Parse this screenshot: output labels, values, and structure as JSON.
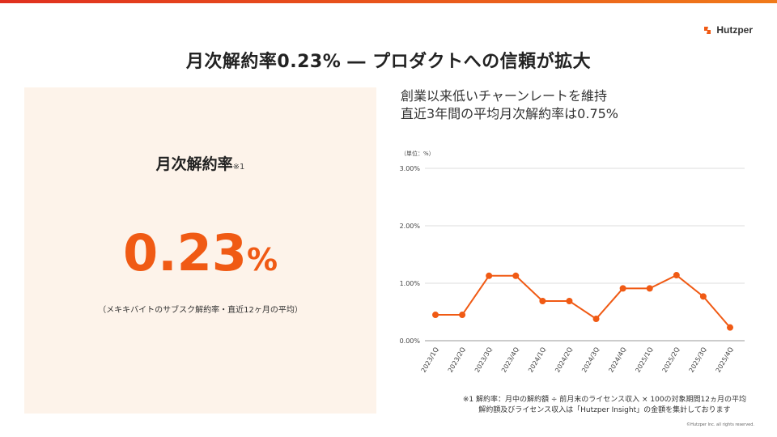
{
  "header": {
    "logo_text": "Hutzper",
    "title": "月次解約率0.23% ― プロダクトへの信頼が拡大"
  },
  "kpi": {
    "label": "月次解約率",
    "note_mark": "※1",
    "value": "0.23",
    "unit": "%",
    "subtitle": "（メキキバイトのサブスク解約率・直近12ヶ月の平均）"
  },
  "right": {
    "line1": "創業以来低いチャーンレートを維持",
    "line2": "直近3年間の平均月次解約率は0.75%"
  },
  "chart_data": {
    "type": "line",
    "unit_label": "（単位：%）",
    "categories": [
      "2023/1Q",
      "2023/2Q",
      "2023/3Q",
      "2023/4Q",
      "2024/1Q",
      "2024/2Q",
      "2024/3Q",
      "2024/4Q",
      "2025/1Q",
      "2025/2Q",
      "2025/3Q",
      "2025/4Q"
    ],
    "series": [
      {
        "values": [
          0.45,
          0.45,
          1.13,
          1.13,
          0.69,
          0.69,
          0.38,
          0.91,
          0.91,
          1.14,
          0.77,
          0.23
        ]
      }
    ],
    "yticks": [
      "0.00%",
      "1.00%",
      "2.00%",
      "3.00%"
    ],
    "ylim": [
      0,
      3
    ],
    "grid": true,
    "color": "#f05a14"
  },
  "footnote": {
    "line1": "※1 解約率：月中の解約額 ÷ 前月末のライセンス収入 × 100の対象期間12ヵ月の平均",
    "line2": "解約額及びライセンス収入は「Hutzper Insight」の金額を集計しております"
  },
  "copyright": "©Hutzper Inc. all rights reserved."
}
